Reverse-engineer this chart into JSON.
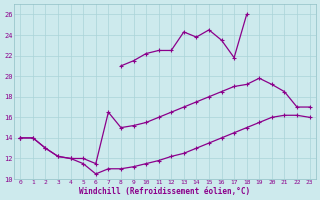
{
  "xlabel": "Windchill (Refroidissement éolien,°C)",
  "bg_color": "#cdeaed",
  "line_color": "#8b008b",
  "grid_color": "#aad4d8",
  "ylim": [
    10,
    27
  ],
  "xlim": [
    -0.5,
    23.5
  ],
  "yticks": [
    10,
    12,
    14,
    16,
    18,
    20,
    22,
    24,
    26
  ],
  "xticks": [
    0,
    1,
    2,
    3,
    4,
    5,
    6,
    7,
    8,
    9,
    10,
    11,
    12,
    13,
    14,
    15,
    16,
    17,
    18,
    19,
    20,
    21,
    22,
    23
  ],
  "line_upper_x": [
    0,
    1,
    2,
    3,
    4,
    5,
    6,
    7,
    8,
    9,
    10,
    11,
    12,
    13,
    14,
    15,
    16,
    17,
    18,
    19,
    20,
    21,
    22,
    23
  ],
  "line_upper_y": [
    14.0,
    null,
    null,
    null,
    null,
    null,
    null,
    null,
    21.0,
    21.5,
    22.2,
    22.5,
    22.5,
    24.3,
    23.8,
    24.5,
    23.5,
    21.8,
    26.0,
    null,
    null,
    null,
    null,
    null
  ],
  "line_mid_x": [
    0,
    1,
    2,
    3,
    4,
    5,
    6,
    7,
    8,
    9,
    10,
    11,
    12,
    13,
    14,
    15,
    16,
    17,
    18,
    19,
    20,
    21,
    22,
    23
  ],
  "line_mid_y": [
    14.0,
    14.0,
    13.0,
    12.2,
    12.0,
    12.0,
    11.5,
    16.5,
    15.0,
    15.2,
    15.5,
    16.0,
    16.5,
    17.0,
    17.5,
    18.0,
    18.5,
    19.0,
    19.2,
    19.8,
    19.2,
    18.5,
    17.0,
    17.0
  ],
  "line_lower_x": [
    0,
    1,
    2,
    3,
    4,
    5,
    6,
    7,
    8,
    9,
    10,
    11,
    12,
    13,
    14,
    15,
    16,
    17,
    18,
    19,
    20,
    21,
    22,
    23
  ],
  "line_lower_y": [
    14.0,
    14.0,
    13.0,
    12.2,
    12.0,
    11.5,
    10.5,
    11.0,
    11.0,
    11.2,
    11.5,
    11.8,
    12.2,
    12.5,
    13.0,
    13.5,
    14.0,
    14.5,
    15.0,
    15.5,
    16.0,
    16.2,
    16.2,
    16.0
  ]
}
